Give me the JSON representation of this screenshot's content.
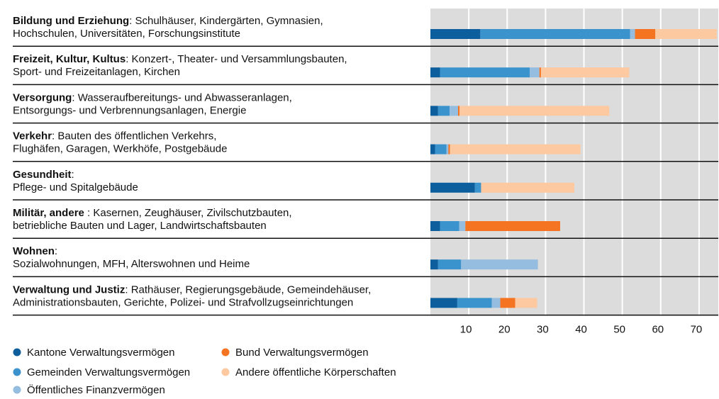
{
  "chart_data": {
    "type": "stacked_barh",
    "categories": [
      "Bildung und Erziehung",
      "Freizeit, Kultur, Kultus",
      "Versorgung",
      "Verkehr",
      "Gesundheit",
      "Militär, andere",
      "Wohnen",
      "Verwaltung und Justiz"
    ],
    "category_descriptions": [
      [
        ": Schulhäuser, Kindergärten, Gymnasien,",
        "Hochschulen, Universitäten, Forschungsinstitute"
      ],
      [
        ": Konzert-, Theater- und Versammlungsbauten,",
        "Sport- und Freizeitanlagen, Kirchen"
      ],
      [
        ": Wasseraufbereitungs- und Abwasseranlagen,",
        "Entsorgungs- und Verbrennungsanlagen, Energie"
      ],
      [
        ": Bauten des öffentlichen Verkehrs,",
        "Flughäfen, Garagen, Werkhöfe, Postgebäude"
      ],
      [
        ":",
        "Pflege- und Spitalgebäude"
      ],
      [
        " : Kasernen, Zeughäuser, Zivilschutzbauten,",
        "betriebliche Bauten und Lager, Landwirtschaftsbauten"
      ],
      [
        ":",
        "Sozialwohnungen, MFH, Alterswohnen und Heime"
      ],
      [
        ": Rathäuser, Regierungsgebäude, Gemeindehäuser,",
        "Administrationsbauten, Gerichte, Polizei- und Strafvollzugseinrichtungen"
      ]
    ],
    "series": [
      {
        "name": "Kantone Verwaltungsvermögen",
        "color": "#0d5e9c",
        "values": [
          13,
          2.5,
          2,
          1.2,
          11.6,
          2.5,
          2,
          7
        ]
      },
      {
        "name": "Gemeinden Verwaltungsvermögen",
        "color": "#3a93cc",
        "values": [
          39,
          23.4,
          3,
          3,
          1.6,
          5,
          6,
          9
        ]
      },
      {
        "name": "Öffentliches Finanzvermögen",
        "color": "#94bde0",
        "values": [
          1.3,
          2.5,
          2.2,
          0.5,
          0,
          1.6,
          20,
          2.2
        ]
      },
      {
        "name": "Bund Verwaltungsvermögen",
        "color": "#f47421",
        "values": [
          5.3,
          0.4,
          0.4,
          0.4,
          0,
          24.7,
          0,
          3.9
        ]
      },
      {
        "name": "Andere öffentliche Körperschaften",
        "color": "#fcc9a0",
        "values": [
          16,
          23,
          39,
          34,
          24.3,
          0,
          0,
          5.7
        ]
      }
    ],
    "xlim": [
      0,
      75
    ],
    "xticks": [
      10,
      20,
      30,
      40,
      50,
      60,
      70
    ],
    "grid": true
  }
}
